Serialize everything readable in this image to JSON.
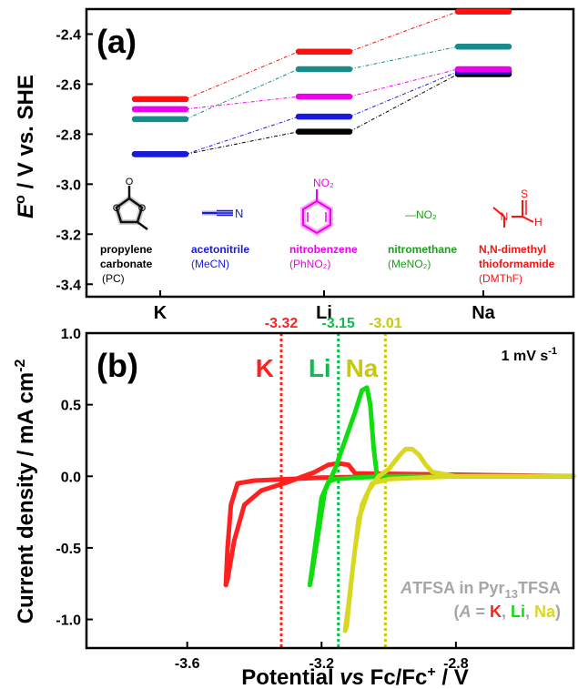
{
  "panel_a": {
    "label": "(a)",
    "ylabel_main": "E",
    "ylabel_sup": "o",
    "ylabel_rest": " / V vs. SHE",
    "colors": {
      "PC": "#000000",
      "MeCN": "#1a1adf",
      "PhNO2": "#ee00ee",
      "MeNO2": "#1a8a8a",
      "DMThF": "#ff1010"
    },
    "solvents": [
      {
        "key": "black",
        "line1": "propylene",
        "line2": "carbonate",
        "abbr": "(PC)",
        "color": "#000000",
        "abbr_color": "#000000",
        "icon": "propylene-carbonate-icon"
      },
      {
        "key": "blue",
        "line1": "acetonitrile",
        "line2": "",
        "abbr": "(MeCN)",
        "color": "#1a1adf",
        "abbr_color": "#1a1adf",
        "icon": "acetonitrile-icon"
      },
      {
        "key": "magenta",
        "line1": "nitrobenzene",
        "line2": "",
        "abbr": "(PhNO₂)",
        "color": "#ee00ee",
        "abbr_color": "#ee00ee",
        "icon": "nitrobenzene-icon"
      },
      {
        "key": "green",
        "line1": "nitromethane",
        "line2": "",
        "abbr": "(MeNO₂)",
        "color": "#1aa01a",
        "abbr_color": "#1aa01a",
        "icon": "nitromethane-icon"
      },
      {
        "key": "red",
        "line1": "N,N-dimethyl",
        "line2": "thioformamide",
        "abbr": "(DMThF)",
        "color": "#ff1010",
        "abbr_color": "#ff1010",
        "icon": "dmthf-icon"
      }
    ],
    "icon_text": {
      "nitro": "NO₂",
      "nitrile": "N",
      "oxygen": "O",
      "sulfur": "S",
      "nitrogen": "N",
      "hydrogen": "H",
      "meno2": "—NO₂"
    }
  },
  "panel_b": {
    "label": "(b)",
    "scan_rate": "1 mV s",
    "scan_rate_sup": "-1",
    "ylabel": "Current density / mA cm",
    "ylabel_sup": "-2",
    "xlabel_a": "Potential ",
    "xlabel_b": "vs",
    "xlabel_c": " Fc/Fc",
    "xlabel_sup": "+",
    "xlabel_d": " / V",
    "legend_l1_a": "A",
    "legend_l1_b": "TFSA in Pyr",
    "legend_l1_sub": "13",
    "legend_l1_c": "TFSA",
    "legend_l2_open": "(",
    "legend_l2_a": "A",
    "legend_l2_eq": " = ",
    "legend_l2_k": "K",
    "legend_l2_c1": ", ",
    "legend_l2_li": "Li",
    "legend_l2_c2": ", ",
    "legend_l2_na": "Na",
    "legend_l2_close": ")",
    "legend_color": "#a6a6a6",
    "colors": {
      "K": "#ff2020",
      "Li": "#10dd10",
      "Na": "#d8d820"
    }
  },
  "chart_data": [
    {
      "type": "line",
      "panel": "(a)",
      "categories": [
        "K",
        "Li",
        "Na"
      ],
      "ylabel": "E° / V vs. SHE",
      "ylim": [
        -3.45,
        -2.3
      ],
      "yticks": [
        -3.4,
        -3.2,
        -3.0,
        -2.8,
        -2.6,
        -2.4
      ],
      "series": [
        {
          "name": "propylene carbonate (PC)",
          "color": "#000000",
          "values": [
            -2.88,
            -2.79,
            -2.56
          ]
        },
        {
          "name": "acetonitrile (MeCN)",
          "color": "#1a1adf",
          "values": [
            -2.88,
            -2.73,
            -2.55
          ]
        },
        {
          "name": "nitrobenzene (PhNO₂)",
          "color": "#ee00ee",
          "values": [
            -2.7,
            -2.65,
            -2.54
          ]
        },
        {
          "name": "nitromethane (MeNO₂)",
          "color": "#1a8a8a",
          "values": [
            -2.74,
            -2.54,
            -2.45
          ]
        },
        {
          "name": "N,N-dimethyl thioformamide (DMThF)",
          "color": "#ff1010",
          "values": [
            -2.66,
            -2.47,
            -2.31
          ]
        }
      ]
    },
    {
      "type": "line",
      "panel": "(b)",
      "xlabel": "Potential vs Fc/Fc+ / V",
      "ylabel": "Current density / mA cm-2",
      "xlim": [
        -3.9,
        -2.45
      ],
      "ylim": [
        -1.2,
        1.0
      ],
      "xticks": [
        -3.6,
        -3.2,
        -2.8
      ],
      "yticks": [
        -1.0,
        -0.5,
        0.0,
        0.5,
        1.0
      ],
      "vlines": [
        {
          "label": "K",
          "value": -3.32,
          "value_text": "-3.32",
          "color": "#ff2020"
        },
        {
          "label": "Li",
          "value": -3.15,
          "value_text": "-3.15",
          "color": "#10bb50"
        },
        {
          "label": "Na",
          "value": -3.01,
          "value_text": "-3.01",
          "color": "#c8c810"
        }
      ],
      "series": [
        {
          "name": "K",
          "color": "#ff2020",
          "x": [
            -2.45,
            -3.0,
            -3.2,
            -3.3,
            -3.4,
            -3.45,
            -3.47,
            -3.48,
            -3.485,
            -3.48,
            -3.46,
            -3.43,
            -3.38,
            -3.3,
            -3.22,
            -3.18,
            -3.15,
            -3.12,
            -3.1,
            -2.45
          ],
          "y": [
            0.0,
            0.0,
            -0.01,
            -0.02,
            -0.03,
            -0.05,
            -0.2,
            -0.5,
            -0.76,
            -0.72,
            -0.45,
            -0.2,
            -0.1,
            -0.04,
            0.03,
            0.08,
            0.09,
            0.08,
            0.02,
            0.0
          ]
        },
        {
          "name": "Li",
          "color": "#10dd10",
          "x": [
            -2.45,
            -3.0,
            -3.1,
            -3.16,
            -3.18,
            -3.2,
            -3.22,
            -3.235,
            -3.23,
            -3.21,
            -3.19,
            -3.16,
            -3.13,
            -3.1,
            -3.08,
            -3.065,
            -3.055,
            -3.045,
            -3.035,
            -2.45
          ],
          "y": [
            0.0,
            0.0,
            -0.01,
            -0.02,
            -0.04,
            -0.15,
            -0.5,
            -0.76,
            -0.7,
            -0.4,
            -0.1,
            0.05,
            0.25,
            0.45,
            0.6,
            0.62,
            0.5,
            0.2,
            0.0,
            0.0
          ]
        },
        {
          "name": "Na",
          "color": "#d8d820",
          "x": [
            -2.45,
            -2.8,
            -2.9,
            -3.0,
            -3.05,
            -3.08,
            -3.1,
            -3.12,
            -3.13,
            -3.125,
            -3.11,
            -3.09,
            -3.06,
            -3.03,
            -3.0,
            -2.97,
            -2.95,
            -2.93,
            -2.91,
            -2.89,
            -2.87,
            -2.8,
            -2.45
          ],
          "y": [
            0.0,
            0.0,
            -0.01,
            -0.02,
            -0.05,
            -0.2,
            -0.5,
            -0.9,
            -1.08,
            -1.05,
            -0.7,
            -0.3,
            -0.1,
            0.0,
            0.05,
            0.14,
            0.19,
            0.19,
            0.15,
            0.08,
            0.03,
            0.0,
            0.0
          ]
        }
      ]
    }
  ]
}
